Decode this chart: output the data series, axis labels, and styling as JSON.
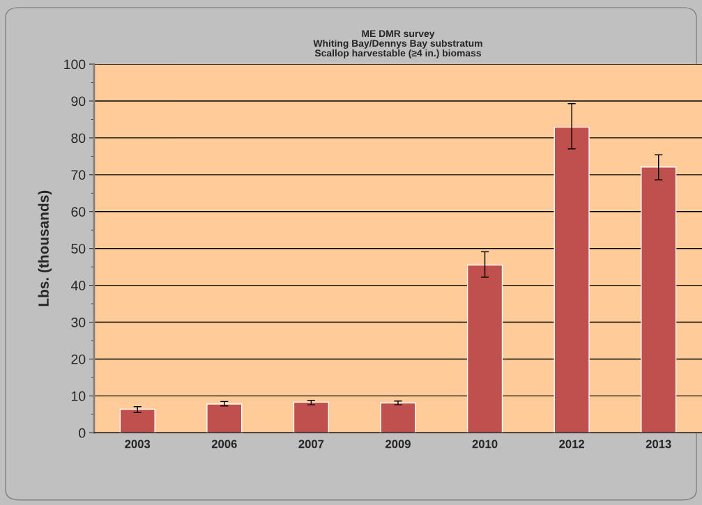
{
  "chart_data": {
    "type": "bar",
    "title": "ME DMR survey\nWhiting Bay/Dennys Bay substratum\nScallop harvestable (≥4 in.) biomass",
    "ylabel": "Lbs. (thousands)",
    "categories": [
      "2003",
      "2006",
      "2007",
      "2009",
      "2010",
      "2012",
      "2013"
    ],
    "values": [
      6.4,
      7.8,
      8.3,
      8.1,
      45.5,
      82.9,
      72.1
    ],
    "errors": [
      [
        5.5,
        7.1
      ],
      [
        7.3,
        8.5
      ],
      [
        7.6,
        8.8
      ],
      [
        7.6,
        8.6
      ],
      [
        42.2,
        49.1
      ],
      [
        77.0,
        89.3
      ],
      [
        68.6,
        75.4
      ]
    ],
    "color": "#c0504d",
    "ylim": [
      0,
      100
    ],
    "yticks": [
      0,
      10,
      20,
      30,
      40,
      50,
      60,
      70,
      80,
      90,
      100
    ],
    "grid": "y",
    "legend": false
  }
}
